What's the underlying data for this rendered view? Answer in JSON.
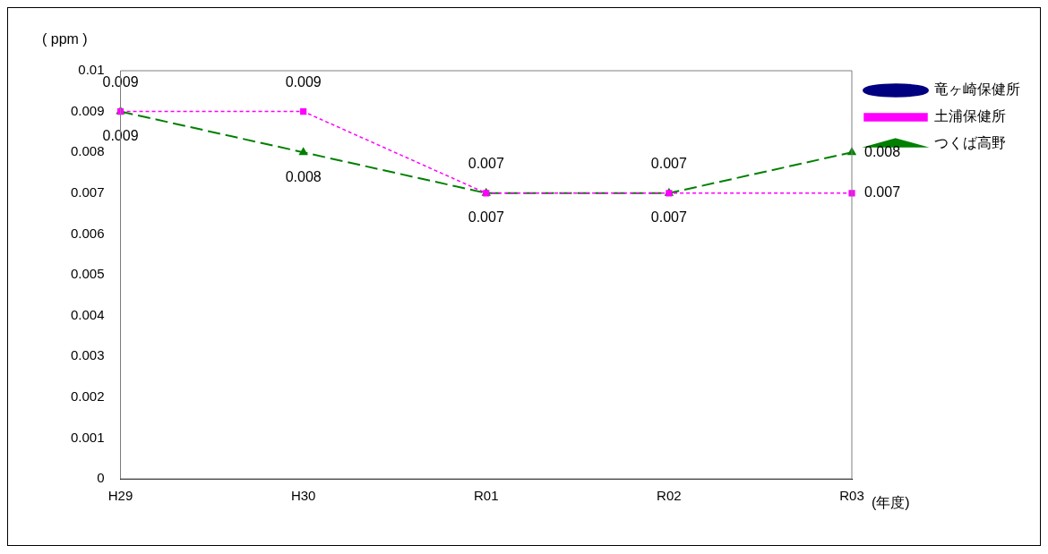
{
  "chart_data": {
    "type": "line",
    "ylabel": "( ppm )",
    "xlabel": "(年度)",
    "categories": [
      "H29",
      "H30",
      "R01",
      "R02",
      "R03"
    ],
    "series": [
      {
        "name": "竜ヶ崎保健所",
        "color": "#000080",
        "values": [
          null,
          null,
          null,
          null,
          null
        ],
        "marker": "circle",
        "line_style": "solid"
      },
      {
        "name": "土浦保健所",
        "color": "#ff00ff",
        "values": [
          0.009,
          0.009,
          0.007,
          0.007,
          0.007
        ],
        "marker": "square",
        "line_style": "dotted"
      },
      {
        "name": "つくば高野",
        "color": "#008000",
        "values": [
          0.009,
          0.008,
          0.007,
          0.007,
          0.008
        ],
        "marker": "triangle",
        "line_style": "dashed"
      }
    ],
    "ylim": [
      0,
      0.01
    ],
    "yticks": [
      0,
      0.001,
      0.002,
      0.003,
      0.004,
      0.005,
      0.006,
      0.007,
      0.008,
      0.009,
      0.01
    ],
    "grid": false,
    "legend": "top right",
    "data_labels": true
  }
}
